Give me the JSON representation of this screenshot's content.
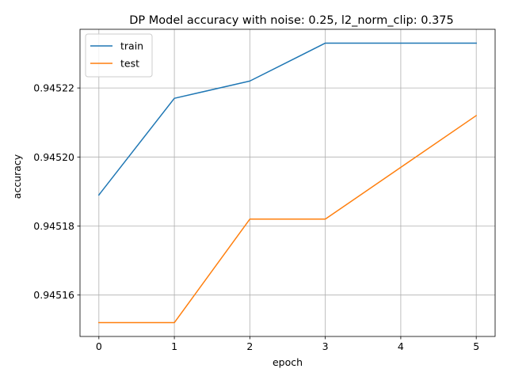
{
  "chart_data": {
    "type": "line",
    "title": "DP Model accuracy with noise: 0.25, l2_norm_clip: 0.375",
    "xlabel": "epoch",
    "ylabel": "accuracy",
    "x": [
      0,
      1,
      2,
      3,
      4,
      5
    ],
    "xticks": [
      0,
      1,
      2,
      3,
      4,
      5
    ],
    "xtick_labels": [
      "0",
      "1",
      "2",
      "3",
      "4",
      "5"
    ],
    "yticks": [
      0.94516,
      0.94518,
      0.9452,
      0.94522
    ],
    "ytick_labels": [
      "0.94516",
      "0.94518",
      "0.94520",
      "0.94522"
    ],
    "xlim": [
      -0.25,
      5.25
    ],
    "ylim": [
      0.945148,
      0.945237
    ],
    "grid": true,
    "legend_position": "top-left",
    "series": [
      {
        "name": "train",
        "color": "#1f77b4",
        "values": [
          0.945189,
          0.945217,
          0.945222,
          0.945233,
          0.945233,
          0.945233
        ]
      },
      {
        "name": "test",
        "color": "#ff7f0e",
        "values": [
          0.945152,
          0.945152,
          0.945182,
          0.945182,
          0.945197,
          0.945212
        ]
      }
    ]
  }
}
